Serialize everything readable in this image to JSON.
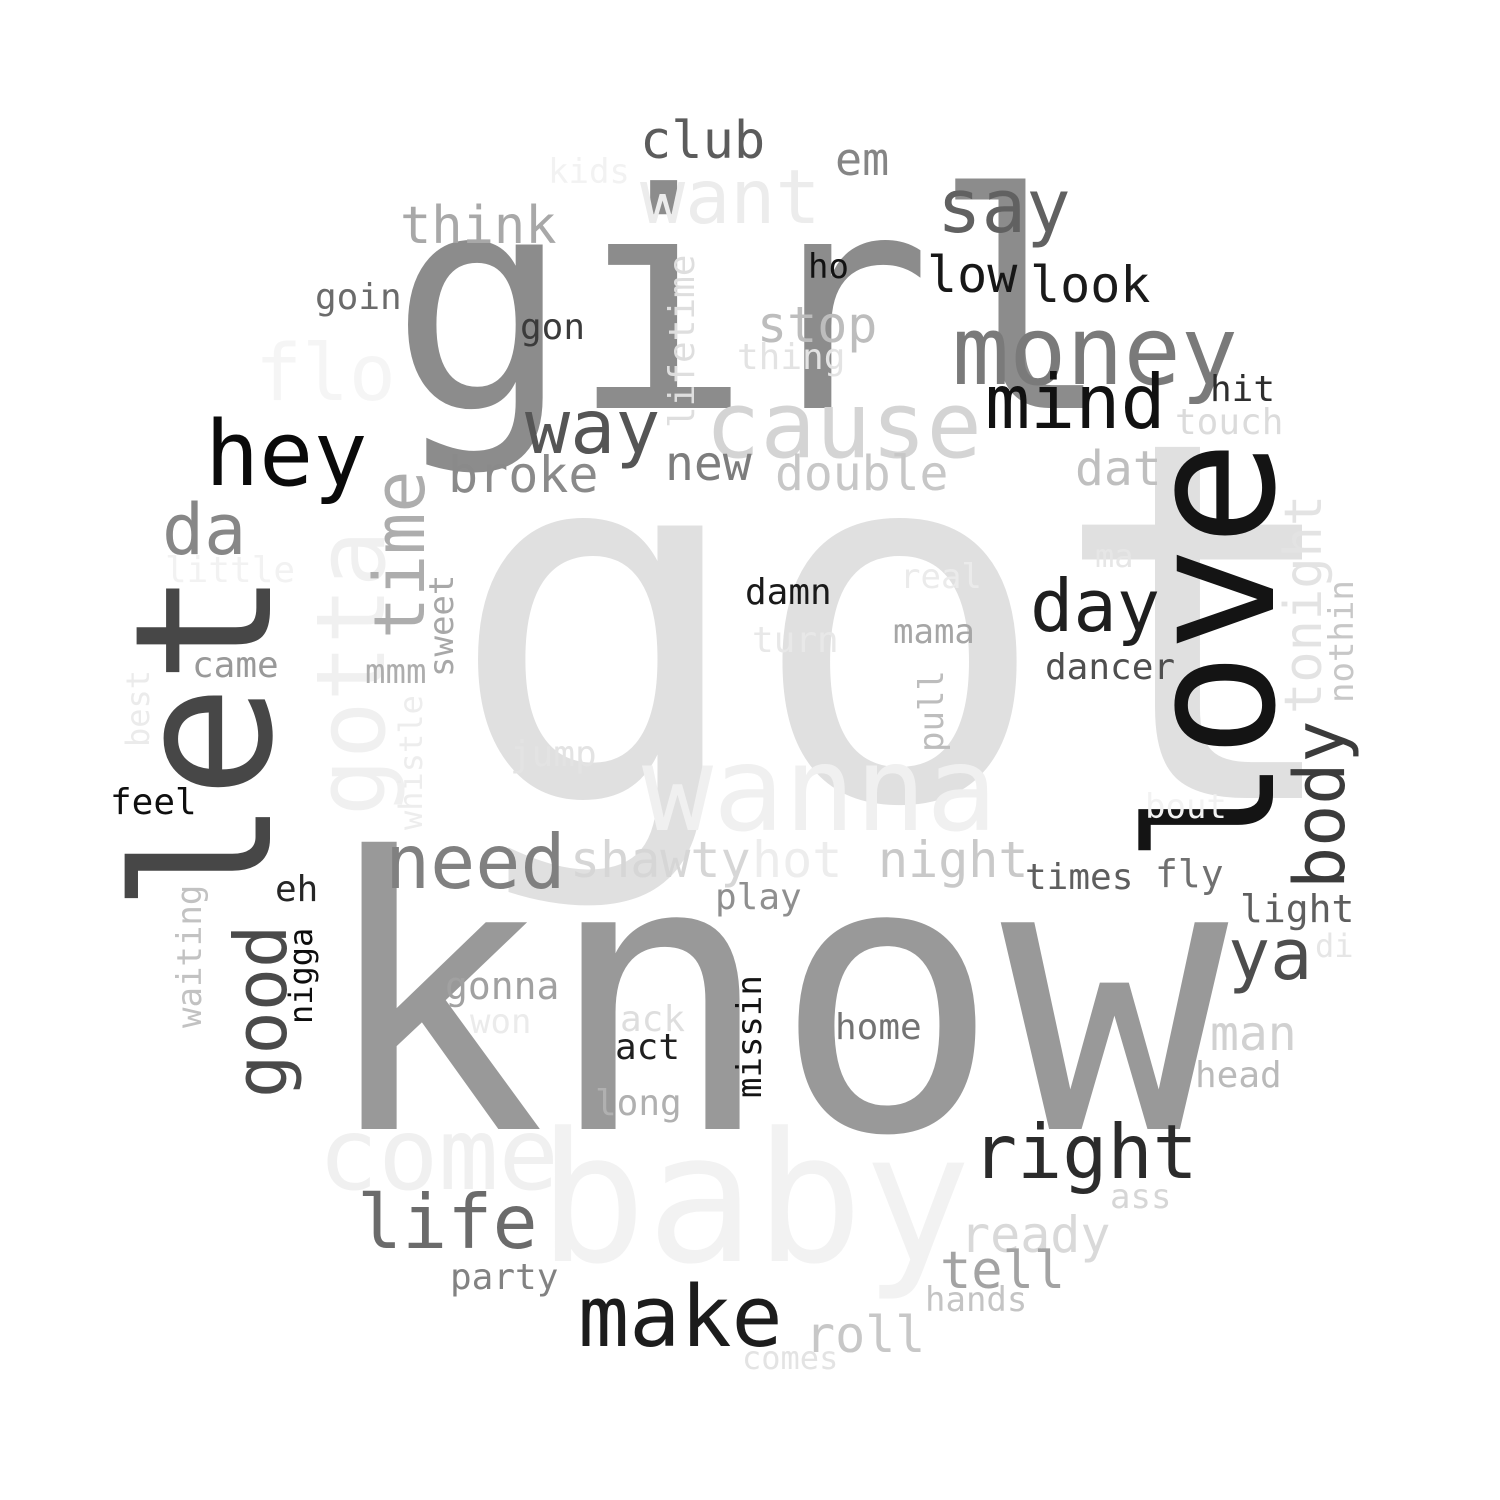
{
  "words": [
    {
      "text": "got",
      "color": "#e0e0e0"
    },
    {
      "text": "know",
      "color": "#999999"
    },
    {
      "text": "wanna",
      "color": "#f0f0f0"
    },
    {
      "text": "baby",
      "color": "#f2f2f2"
    },
    {
      "text": "girl",
      "color": "#8c8c8c"
    },
    {
      "text": "love",
      "color": "#141414"
    },
    {
      "text": "let",
      "color": "#474747"
    },
    {
      "text": "gotta",
      "color": "#f0f0f0"
    },
    {
      "text": "come",
      "color": "#f0f0f0"
    },
    {
      "text": "cause",
      "color": "#d4d4d4"
    },
    {
      "text": "money",
      "color": "#7a7a7a"
    },
    {
      "text": "hey",
      "color": "#0a0a0a"
    },
    {
      "text": "make",
      "color": "#1c1c1c"
    },
    {
      "text": "right",
      "color": "#2b2b2b"
    },
    {
      "text": "want",
      "color": "#ececec"
    },
    {
      "text": "say",
      "color": "#616161"
    },
    {
      "text": "mind",
      "color": "#111111"
    },
    {
      "text": "flo",
      "color": "#f5f5f5"
    },
    {
      "text": "way",
      "color": "#555555"
    },
    {
      "text": "day",
      "color": "#1f1f1f"
    },
    {
      "text": "need",
      "color": "#808080"
    },
    {
      "text": "life",
      "color": "#6b6b6b"
    },
    {
      "text": "good",
      "color": "#4a4a4a"
    },
    {
      "text": "body",
      "color": "#3b3b3b"
    },
    {
      "text": "da",
      "color": "#878787"
    },
    {
      "text": "time",
      "color": "#adadad"
    },
    {
      "text": "ya",
      "color": "#4d4d4d"
    },
    {
      "text": "think",
      "color": "#a8a8a8"
    },
    {
      "text": "club",
      "color": "#5c5c5c"
    },
    {
      "text": "tonight",
      "color": "#e3e3e3"
    },
    {
      "text": "broke",
      "color": "#8a8a8a"
    },
    {
      "text": "double",
      "color": "#c7c7c7"
    },
    {
      "text": "new",
      "color": "#7d7d7d"
    },
    {
      "text": "dat",
      "color": "#bfbfbf"
    },
    {
      "text": "night",
      "color": "#c9c9c9"
    },
    {
      "text": "shawty",
      "color": "#d6d6d6"
    },
    {
      "text": "hot",
      "color": "#ededed"
    },
    {
      "text": "stop",
      "color": "#bdbdbd"
    },
    {
      "text": "look",
      "color": "#1a1a1a"
    },
    {
      "text": "low",
      "color": "#171717"
    },
    {
      "text": "em",
      "color": "#858585"
    },
    {
      "text": "ready",
      "color": "#d9d9d9"
    },
    {
      "text": "tell",
      "color": "#a3a3a3"
    },
    {
      "text": "roll",
      "color": "#c7c7c7"
    },
    {
      "text": "man",
      "color": "#d1d1d1"
    },
    {
      "text": "lifetime",
      "color": "#dedede"
    },
    {
      "text": "times",
      "color": "#5e5e5e"
    },
    {
      "text": "dancer",
      "color": "#4f4f4f"
    },
    {
      "text": "gonna",
      "color": "#a1a1a1"
    },
    {
      "text": "fly",
      "color": "#707070"
    },
    {
      "text": "light",
      "color": "#5e5e5e"
    },
    {
      "text": "missin",
      "color": "#141414"
    },
    {
      "text": "home",
      "color": "#737373"
    },
    {
      "text": "hit",
      "color": "#2e2e2e"
    },
    {
      "text": "goin",
      "color": "#6b6b6b"
    },
    {
      "text": "gon",
      "color": "#3b3b3b"
    },
    {
      "text": "thing",
      "color": "#e3e3e3"
    },
    {
      "text": "touch",
      "color": "#dbdbdb"
    },
    {
      "text": "damn",
      "color": "#1a1a1a"
    },
    {
      "text": "turn",
      "color": "#e8e8e8"
    },
    {
      "text": "mama",
      "color": "#a6a6a6"
    },
    {
      "text": "real",
      "color": "#ebebeb"
    },
    {
      "text": "ma",
      "color": "#e6e6e6"
    },
    {
      "text": "nothin",
      "color": "#c7c7c7"
    },
    {
      "text": "sweet",
      "color": "#a8a8a8"
    },
    {
      "text": "mmm",
      "color": "#adadad"
    },
    {
      "text": "came",
      "color": "#999999"
    },
    {
      "text": "little",
      "color": "#f2f2f2"
    },
    {
      "text": "whistle",
      "color": "#ededed"
    },
    {
      "text": "best",
      "color": "#ebebeb"
    },
    {
      "text": "feel",
      "color": "#0f0f0f"
    },
    {
      "text": "eh",
      "color": "#262626"
    },
    {
      "text": "nigga",
      "color": "#0d0d0d"
    },
    {
      "text": "waiting",
      "color": "#c2c2c2"
    },
    {
      "text": "jump",
      "color": "#e3e3e3"
    },
    {
      "text": "pull",
      "color": "#bdbdbd"
    },
    {
      "text": "ho",
      "color": "#121212"
    },
    {
      "text": "kids",
      "color": "#f2f2f2"
    },
    {
      "text": "play",
      "color": "#8f8f8f"
    },
    {
      "text": "won",
      "color": "#ebebeb"
    },
    {
      "text": "ack",
      "color": "#dedede"
    },
    {
      "text": "act",
      "color": "#1f1f1f"
    },
    {
      "text": "long",
      "color": "#b0b0b0"
    },
    {
      "text": "head",
      "color": "#bababa"
    },
    {
      "text": "ass",
      "color": "#d6d6d6"
    },
    {
      "text": "party",
      "color": "#828282"
    },
    {
      "text": "hands",
      "color": "#c4c4c4"
    },
    {
      "text": "comes",
      "color": "#e3e3e3"
    },
    {
      "text": "bout",
      "color": "#f2f2f2"
    },
    {
      "text": "di",
      "color": "#e6e6e6"
    }
  ]
}
